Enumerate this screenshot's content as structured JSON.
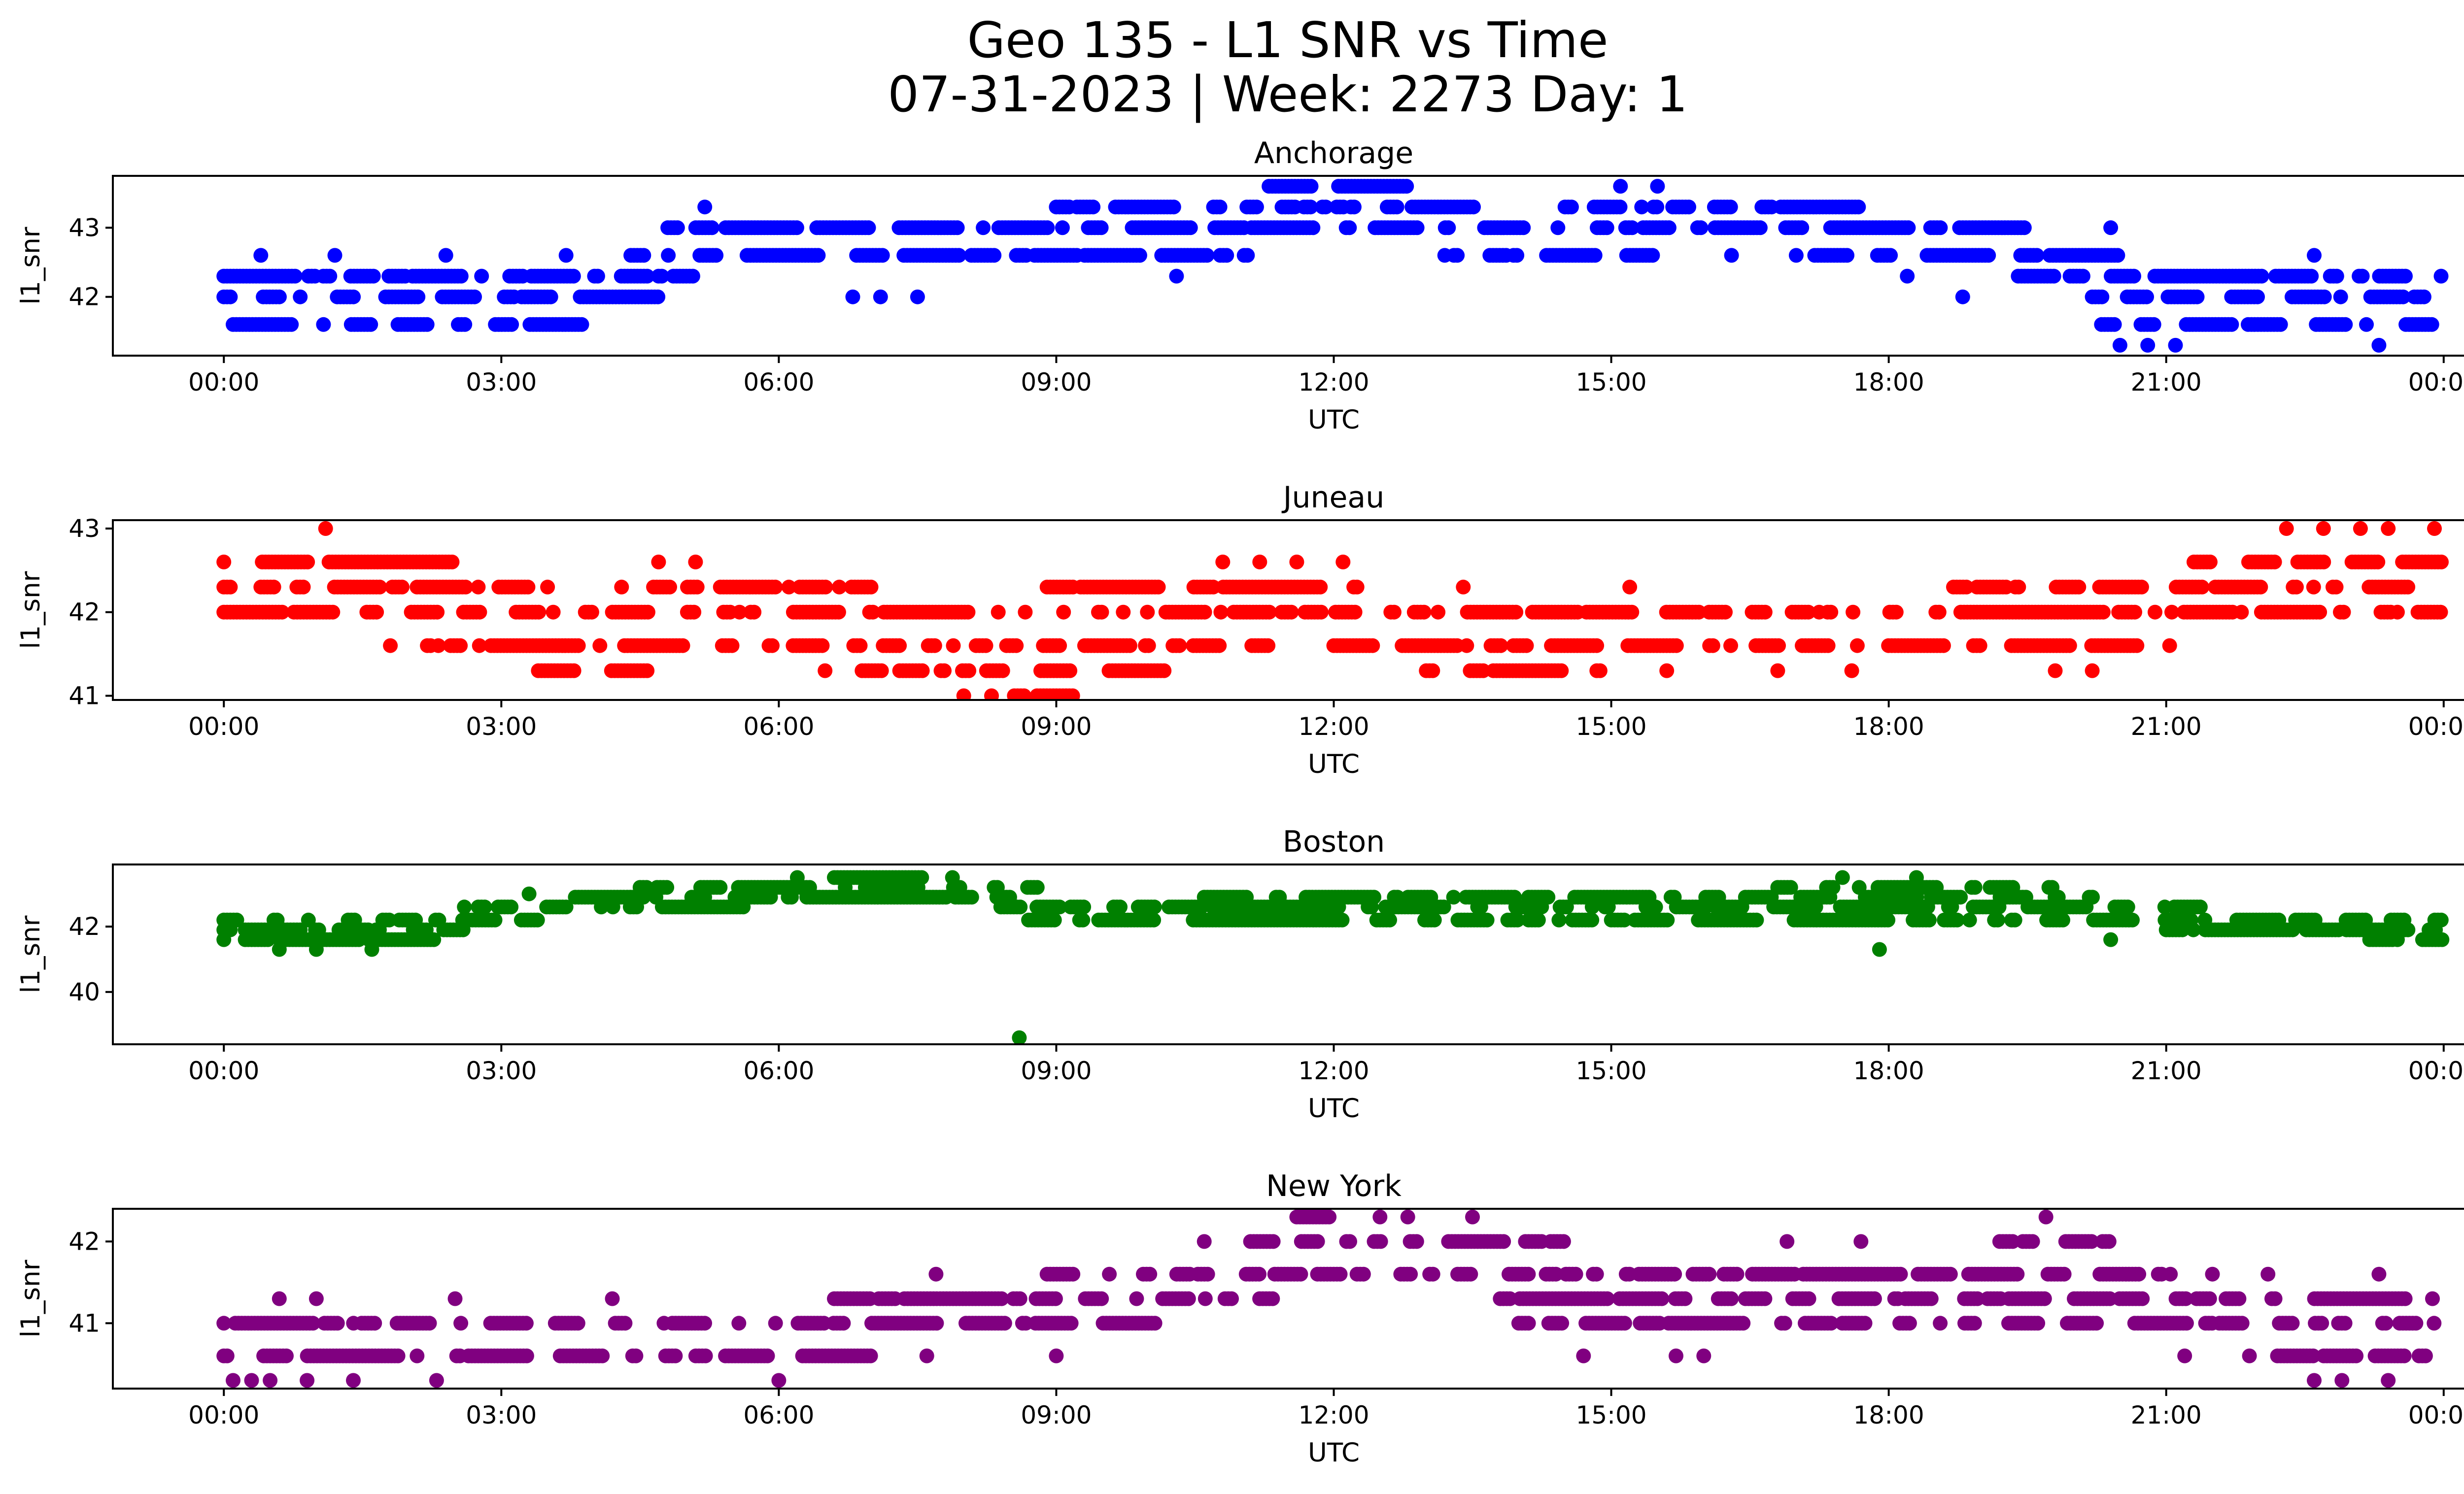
{
  "figure": {
    "title_line1": "Geo 135 - L1 SNR vs Time",
    "title_line2": "07-31-2023 | Week: 2273 Day: 1"
  },
  "chart_data": [
    {
      "type": "scatter",
      "title": "Anchorage",
      "xlabel": "UTC",
      "ylabel": "l1_snr",
      "color": "#0000ff",
      "xticks": [
        "00:00",
        "03:00",
        "06:00",
        "09:00",
        "12:00",
        "15:00",
        "18:00",
        "21:00",
        "00:00"
      ],
      "xlim_hours": [
        -1.2,
        25.2
      ],
      "ylim": [
        41.15,
        43.75
      ],
      "yticks": [
        42,
        43
      ],
      "levels": [
        {
          "y": 42.0,
          "ranges": [
            [
              0.0,
              4.7
            ],
            [
              20.2,
              24.0
            ]
          ]
        },
        {
          "y": 42.3,
          "ranges": [
            [
              0.0,
              5.1
            ],
            [
              19.4,
              24.0
            ]
          ]
        },
        {
          "y": 42.6,
          "ranges": [
            [
              4.4,
              11.1
            ],
            [
              13.3,
              14.0
            ],
            [
              14.3,
              15.8
            ],
            [
              17.0,
              20.5
            ]
          ]
        },
        {
          "y": 43.0,
          "ranges": [
            [
              4.8,
              7.0
            ],
            [
              7.3,
              19.5
            ]
          ]
        },
        {
          "y": 43.3,
          "ranges": [
            [
              9.0,
              10.3
            ],
            [
              10.7,
              13.9
            ],
            [
              14.5,
              17.7
            ]
          ]
        },
        {
          "y": 43.6,
          "ranges": [
            [
              11.3,
              12.8
            ]
          ]
        },
        {
          "y": 41.6,
          "ranges": [
            [
              0.1,
              3.9
            ],
            [
              20.3,
              23.9
            ]
          ]
        }
      ],
      "sparse_points": [
        [
          0.4,
          42.6
        ],
        [
          1.2,
          42.6
        ],
        [
          2.4,
          42.6
        ],
        [
          3.7,
          42.6
        ],
        [
          5.2,
          43.3
        ],
        [
          6.8,
          42.0
        ],
        [
          7.1,
          42.0
        ],
        [
          7.5,
          42.0
        ],
        [
          10.3,
          42.3
        ],
        [
          13.2,
          42.6
        ],
        [
          15.1,
          43.6
        ],
        [
          15.5,
          43.6
        ],
        [
          16.3,
          42.6
        ],
        [
          18.2,
          42.3
        ],
        [
          18.8,
          42.0
        ],
        [
          20.4,
          43.0
        ],
        [
          20.5,
          41.3
        ],
        [
          20.8,
          41.3
        ],
        [
          21.1,
          41.3
        ],
        [
          22.6,
          42.6
        ],
        [
          23.3,
          41.3
        ]
      ]
    },
    {
      "type": "scatter",
      "title": "Juneau",
      "xlabel": "UTC",
      "ylabel": "l1_snr",
      "color": "#ff0000",
      "xticks": [
        "00:00",
        "03:00",
        "06:00",
        "09:00",
        "12:00",
        "15:00",
        "18:00",
        "21:00",
        "00:00"
      ],
      "xlim_hours": [
        -1.2,
        25.2
      ],
      "ylim": [
        40.95,
        43.1
      ],
      "yticks": [
        41,
        42,
        43
      ],
      "levels": [
        {
          "y": 42.0,
          "ranges": [
            [
              0.0,
              24.0
            ]
          ]
        },
        {
          "y": 42.3,
          "ranges": [
            [
              0.0,
              3.3
            ],
            [
              4.3,
              7.1
            ],
            [
              8.9,
              12.3
            ],
            [
              18.7,
              24.0
            ]
          ]
        },
        {
          "y": 42.6,
          "ranges": [
            [
              0.0,
              2.5
            ],
            [
              21.3,
              24.0
            ]
          ]
        },
        {
          "y": 41.6,
          "ranges": [
            [
              2.2,
              11.3
            ],
            [
              12.0,
              21.2
            ]
          ]
        },
        {
          "y": 41.3,
          "ranges": [
            [
              3.4,
              4.6
            ],
            [
              6.9,
              10.2
            ],
            [
              13.0,
              15.0
            ]
          ]
        },
        {
          "y": 41.0,
          "ranges": [
            [
              8.3,
              9.2
            ]
          ]
        }
      ],
      "sparse_points": [
        [
          1.1,
          43.0
        ],
        [
          1.8,
          41.6
        ],
        [
          3.5,
          42.3
        ],
        [
          4.7,
          42.6
        ],
        [
          5.1,
          42.6
        ],
        [
          6.5,
          41.3
        ],
        [
          8.0,
          41.0
        ],
        [
          10.8,
          42.6
        ],
        [
          11.2,
          42.6
        ],
        [
          11.6,
          42.6
        ],
        [
          12.1,
          42.6
        ],
        [
          13.4,
          42.3
        ],
        [
          15.2,
          42.3
        ],
        [
          15.6,
          41.3
        ],
        [
          16.8,
          41.3
        ],
        [
          17.6,
          41.3
        ],
        [
          19.8,
          41.3
        ],
        [
          20.2,
          41.3
        ],
        [
          22.3,
          43.0
        ],
        [
          22.7,
          43.0
        ],
        [
          23.1,
          43.0
        ],
        [
          23.4,
          43.0
        ],
        [
          23.9,
          43.0
        ],
        [
          23.5,
          42.0
        ]
      ]
    },
    {
      "type": "scatter",
      "title": "Boston",
      "xlabel": "UTC",
      "ylabel": "l1_snr",
      "color": "#008000",
      "xticks": [
        "00:00",
        "03:00",
        "06:00",
        "09:00",
        "12:00",
        "15:00",
        "18:00",
        "21:00",
        "00:00"
      ],
      "xlim_hours": [
        -1.2,
        25.2
      ],
      "ylim": [
        38.4,
        43.9
      ],
      "yticks": [
        40,
        42
      ],
      "levels": [
        {
          "y": 41.6,
          "ranges": [
            [
              0.0,
              2.3
            ],
            [
              23.2,
              24.0
            ]
          ]
        },
        {
          "y": 41.9,
          "ranges": [
            [
              0.0,
              2.8
            ],
            [
              21.0,
              24.0
            ]
          ]
        },
        {
          "y": 42.2,
          "ranges": [
            [
              0.0,
              3.4
            ],
            [
              8.7,
              24.0
            ]
          ]
        },
        {
          "y": 42.6,
          "ranges": [
            [
              2.6,
              6.0
            ],
            [
              8.4,
              21.4
            ]
          ]
        },
        {
          "y": 42.9,
          "ranges": [
            [
              3.8,
              8.8
            ],
            [
              10.6,
              20.4
            ]
          ]
        },
        {
          "y": 43.2,
          "ranges": [
            [
              4.5,
              8.8
            ],
            [
              16.8,
              19.8
            ]
          ]
        },
        {
          "y": 43.5,
          "ranges": [
            [
              6.6,
              7.9
            ]
          ]
        }
      ],
      "sparse_points": [
        [
          0.6,
          41.3
        ],
        [
          1.0,
          41.3
        ],
        [
          1.6,
          41.3
        ],
        [
          3.3,
          43.0
        ],
        [
          6.2,
          43.5
        ],
        [
          17.5,
          43.5
        ],
        [
          18.3,
          43.5
        ],
        [
          17.9,
          41.3
        ],
        [
          8.6,
          38.6
        ],
        [
          20.4,
          41.6
        ],
        [
          23.5,
          41.6
        ]
      ]
    },
    {
      "type": "scatter",
      "title": "New York",
      "xlabel": "UTC",
      "ylabel": "l1_snr",
      "color": "#800080",
      "xticks": [
        "00:00",
        "03:00",
        "06:00",
        "09:00",
        "12:00",
        "15:00",
        "18:00",
        "21:00",
        "00:00"
      ],
      "xlim_hours": [
        -1.2,
        25.2
      ],
      "ylim": [
        40.2,
        42.4
      ],
      "yticks": [
        41,
        42
      ],
      "levels": [
        {
          "y": 40.6,
          "ranges": [
            [
              0.0,
              7.1
            ],
            [
              21.9,
              24.0
            ]
          ]
        },
        {
          "y": 41.0,
          "ranges": [
            [
              0.0,
              10.2
            ],
            [
              14.0,
              24.0
            ]
          ]
        },
        {
          "y": 41.3,
          "ranges": [
            [
              6.6,
              11.4
            ],
            [
              13.8,
              23.9
            ]
          ]
        },
        {
          "y": 41.6,
          "ranges": [
            [
              8.9,
              21.3
            ]
          ]
        },
        {
          "y": 42.0,
          "ranges": [
            [
              11.1,
              14.5
            ],
            [
              19.2,
              20.4
            ]
          ]
        },
        {
          "y": 42.3,
          "ranges": [
            [
              11.6,
              12.3
            ]
          ]
        }
      ],
      "sparse_points": [
        [
          0.1,
          40.3
        ],
        [
          0.3,
          40.3
        ],
        [
          0.5,
          40.3
        ],
        [
          0.9,
          40.3
        ],
        [
          1.4,
          40.3
        ],
        [
          2.3,
          40.3
        ],
        [
          6.0,
          40.3
        ],
        [
          0.6,
          41.3
        ],
        [
          1.0,
          41.3
        ],
        [
          2.5,
          41.3
        ],
        [
          4.2,
          41.3
        ],
        [
          7.6,
          40.6
        ],
        [
          7.7,
          41.6
        ],
        [
          9.0,
          40.6
        ],
        [
          10.6,
          42.0
        ],
        [
          12.5,
          42.3
        ],
        [
          12.8,
          42.3
        ],
        [
          13.5,
          42.3
        ],
        [
          14.7,
          40.6
        ],
        [
          15.7,
          40.6
        ],
        [
          16.0,
          40.6
        ],
        [
          16.9,
          42.0
        ],
        [
          17.7,
          42.0
        ],
        [
          19.7,
          42.3
        ],
        [
          21.2,
          40.6
        ],
        [
          21.5,
          41.6
        ],
        [
          22.1,
          41.6
        ],
        [
          22.6,
          40.3
        ],
        [
          22.9,
          40.3
        ],
        [
          23.3,
          41.6
        ],
        [
          23.4,
          40.3
        ]
      ]
    }
  ]
}
